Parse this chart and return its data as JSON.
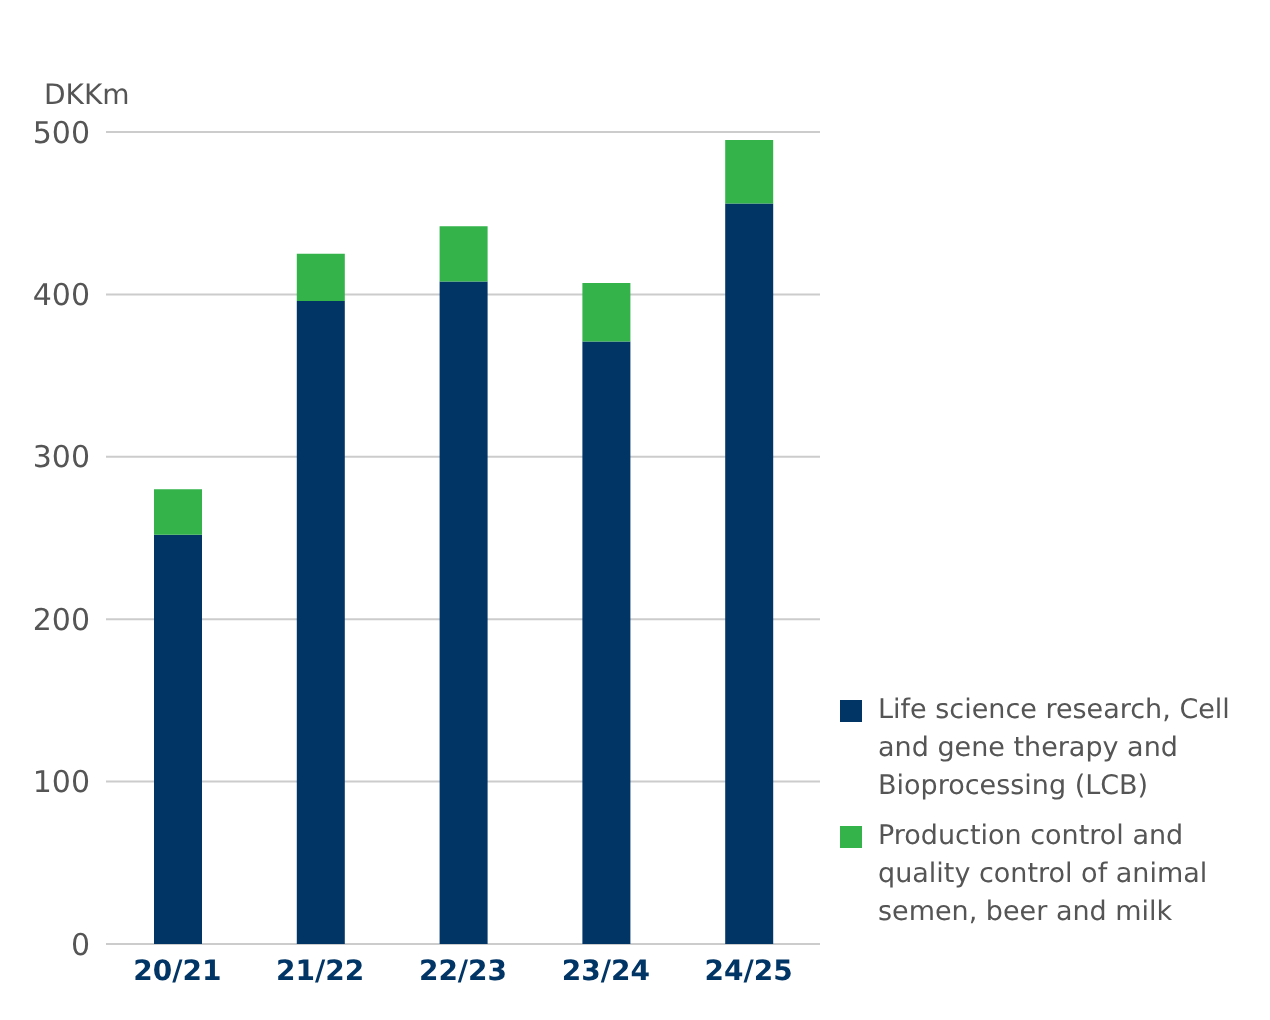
{
  "chart_data": {
    "type": "bar",
    "ylabel": "DKKm",
    "stacked": true,
    "categories": [
      "20/21",
      "21/22",
      "22/23",
      "23/24",
      "24/25"
    ],
    "series": [
      {
        "name": "Life science research, Cell and gene therapy and Bioprocessing (LCB)",
        "color": "#003566",
        "values": [
          252,
          396,
          408,
          371,
          456
        ]
      },
      {
        "name": "Production control and quality control of animal semen, beer and milk",
        "color": "#33b34a",
        "values": [
          28,
          29,
          34,
          36,
          39
        ]
      }
    ],
    "ylim": [
      0,
      500
    ],
    "yticks": [
      0,
      100,
      200,
      300,
      400,
      500
    ],
    "grid": "y",
    "legend": "bottom right"
  }
}
